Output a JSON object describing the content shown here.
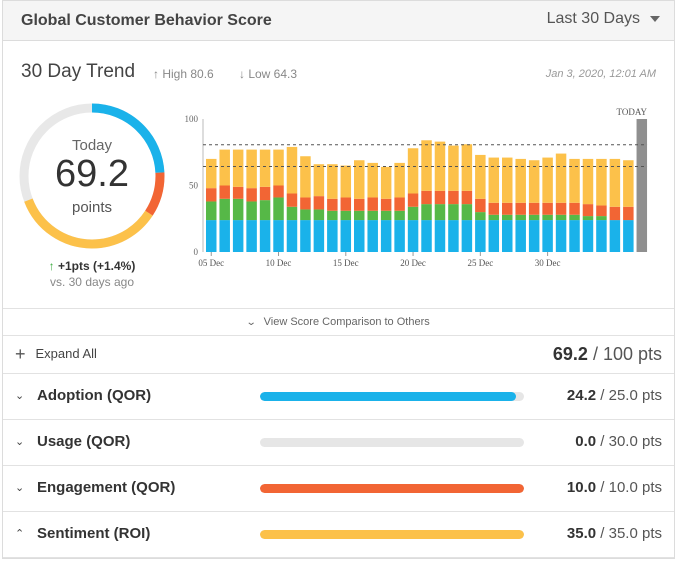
{
  "header": {
    "title": "Global Customer Behavior Score",
    "range": "Last 30 Days"
  },
  "trend": {
    "title": "30 Day Trend",
    "high_text": "↑ High 80.6",
    "low_text": "↓ Low 64.3",
    "timestamp": "Jan 3, 2020, 12:01 AM"
  },
  "gauge": {
    "label": "Today",
    "value": "69.2",
    "unit": "points",
    "score": 69.2,
    "max": 100,
    "delta_arrow": "↑",
    "delta": "+1pts (+1.4%)",
    "delta_sub": "vs. 30 days ago",
    "segments": [
      {
        "name": "Adoption",
        "value": 24.2,
        "color": "#1ab2ea"
      },
      {
        "name": "Engagement",
        "value": 10.0,
        "color": "#f26534"
      },
      {
        "name": "Sentiment",
        "value": 35.0,
        "color": "#fcc14a"
      }
    ]
  },
  "chart_data": {
    "type": "bar",
    "stacked": true,
    "ylim": [
      0,
      100
    ],
    "y_ticks": [
      "0",
      "50",
      "100"
    ],
    "x_ticks": [
      {
        "index": 0,
        "label": "05 Dec"
      },
      {
        "index": 5,
        "label": "10 Dec"
      },
      {
        "index": 10,
        "label": "15 Dec"
      },
      {
        "index": 15,
        "label": "20 Dec"
      },
      {
        "index": 20,
        "label": "25 Dec"
      },
      {
        "index": 25,
        "label": "30 Dec"
      }
    ],
    "today_label": "TODAY",
    "today_total": 100,
    "reference_lines": [
      80.6,
      64.3
    ],
    "series": [
      {
        "name": "Adoption",
        "color": "#1ab2ea",
        "values": [
          24,
          24,
          24,
          24,
          24,
          24,
          24,
          24,
          24,
          24,
          24,
          24,
          24,
          24,
          24,
          24,
          24,
          24,
          24,
          24,
          24,
          24,
          24,
          24,
          24,
          24,
          24,
          24,
          24,
          24,
          24,
          24
        ]
      },
      {
        "name": "Usage",
        "color": "#56b847",
        "values": [
          14,
          16,
          16,
          14,
          15,
          17,
          10,
          8,
          8,
          7,
          7,
          7,
          7,
          7,
          7,
          10,
          12,
          12,
          12,
          12,
          6,
          4,
          4,
          4,
          4,
          4,
          4,
          4,
          3,
          3,
          0,
          0
        ]
      },
      {
        "name": "Engagement",
        "color": "#f26534",
        "values": [
          10,
          10,
          9,
          10,
          10,
          9,
          10,
          9,
          10,
          9,
          10,
          9,
          10,
          9,
          10,
          10,
          10,
          10,
          10,
          10,
          10,
          9,
          9,
          9,
          9,
          9,
          9,
          9,
          9,
          8,
          10,
          10
        ]
      },
      {
        "name": "Sentiment",
        "color": "#fcc14a",
        "values": [
          22,
          27,
          28,
          29,
          28,
          27,
          35,
          31,
          24,
          26,
          24,
          29,
          26,
          24,
          26,
          34,
          38,
          37,
          34,
          35,
          33,
          34,
          34,
          33,
          32,
          34,
          37,
          33,
          34,
          35,
          36,
          35
        ]
      }
    ]
  },
  "compare": {
    "label": "View Score Comparison to Others"
  },
  "summary": {
    "expand_label": "Expand All",
    "total_value": "69.2",
    "total_suffix": " / 100 pts"
  },
  "categories": [
    {
      "label": "Adoption (QOR)",
      "chevron": "⌄",
      "value": "24.2",
      "suffix": " / 25.0 pts",
      "fraction": 0.968,
      "color": "#1ab2ea"
    },
    {
      "label": "Usage (QOR)",
      "chevron": "⌄",
      "value": "0.0",
      "suffix": " / 30.0 pts",
      "fraction": 0.0,
      "color": "#e6e6e6"
    },
    {
      "label": "Engagement (QOR)",
      "chevron": "⌄",
      "value": "10.0",
      "suffix": " / 10.0 pts",
      "fraction": 1.0,
      "color": "#f26534"
    },
    {
      "label": "Sentiment (ROI)",
      "chevron": "⌃",
      "value": "35.0",
      "suffix": " / 35.0 pts",
      "fraction": 1.0,
      "color": "#fcc14a"
    }
  ]
}
